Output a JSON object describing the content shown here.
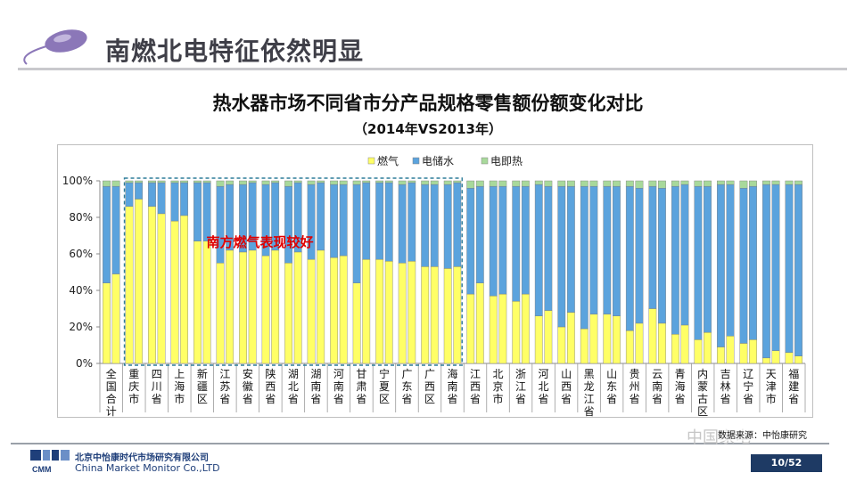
{
  "slide": {
    "title": "南燃北电特征依然明显",
    "page_number": "10/52",
    "watermark": "中国家电"
  },
  "company": {
    "name_cn": "北京中怡康时代市场研究有限公司",
    "name_en": "China Market Monitor Co.,LTD",
    "logo_text": "CMM"
  },
  "source_label": "数据来源：中怡康研究",
  "colors": {
    "gas": "#ffff66",
    "storage": "#5ba3dd",
    "instant": "#a8d99b",
    "accent_red": "#e00000",
    "highlight_box": "#2e7d9a"
  },
  "chart_data": {
    "type": "bar",
    "stacked": true,
    "title": "热水器市场不同省市分产品规格零售额份额变化对比",
    "subtitle": "（2014年VS2013年）",
    "ylim": [
      0,
      100
    ],
    "yticks": [
      "0%",
      "20%",
      "40%",
      "60%",
      "80%",
      "100%"
    ],
    "legend": {
      "position": "top",
      "entries": [
        "燃气",
        "电储水",
        "电即热"
      ]
    },
    "annotation": {
      "text": "南方燃气表现较好",
      "region_start": "重庆市",
      "region_end": "海南省"
    },
    "bar_order": [
      "2013",
      "2014"
    ],
    "categories": [
      "全国合计",
      "重庆市",
      "四川省",
      "上海市",
      "新疆区",
      "江苏省",
      "安徽省",
      "陕西省",
      "湖北省",
      "湖南省",
      "河南省",
      "甘肃省",
      "宁夏区",
      "广东省",
      "广西区",
      "海南省",
      "江西省",
      "北京市",
      "浙江省",
      "河北省",
      "山西省",
      "黑龙江省",
      "山东省",
      "贵州省",
      "云南省",
      "青海省",
      "内蒙古区",
      "吉林省",
      "辽宁省",
      "天津市",
      "福建省"
    ],
    "category_display": [
      "全国合计",
      "重庆市",
      "四川省",
      "上海市",
      "新疆区",
      "江苏省",
      "安徽省",
      "陕西省",
      "湖北省",
      "湖南省",
      "河南省",
      "甘肃省",
      "宁夏区",
      "广东省",
      "广西区",
      "海南省",
      "江西省",
      "北京市",
      "浙江省",
      "河北省",
      "山西省",
      "黑龙江省",
      "山东省",
      "贵州省",
      "云南省",
      "青海省",
      "内蒙古区",
      "吉林省",
      "辽宁省",
      "天津市",
      "福建省"
    ],
    "series": [
      {
        "name": "燃气",
        "values_2013": [
          44,
          86,
          86,
          78,
          67,
          55,
          61,
          59,
          55,
          57,
          58,
          44,
          57,
          55,
          53,
          52,
          38,
          37,
          34,
          26,
          20,
          19,
          27,
          18,
          30,
          16,
          13,
          9,
          11,
          3,
          6
        ],
        "values_2014": [
          49,
          90,
          82,
          81,
          67,
          62,
          62,
          62,
          61,
          62,
          59,
          57,
          56,
          56,
          53,
          53,
          44,
          38,
          38,
          29,
          28,
          27,
          26,
          22,
          22,
          21,
          17,
          15,
          13,
          7,
          4
        ]
      },
      {
        "name": "电储水",
        "values_2013": [
          53,
          13,
          13,
          21,
          32,
          42,
          37,
          39,
          42,
          41,
          40,
          54,
          42,
          43,
          45,
          46,
          58,
          60,
          63,
          72,
          77,
          78,
          70,
          79,
          67,
          81,
          84,
          89,
          85,
          95,
          92
        ],
        "values_2014": [
          48,
          9,
          17,
          18,
          32,
          36,
          37,
          37,
          38,
          37,
          39,
          42,
          43,
          43,
          45,
          46,
          53,
          59,
          59,
          68,
          69,
          70,
          71,
          74,
          74,
          77,
          80,
          83,
          84,
          91,
          94
        ]
      },
      {
        "name": "电即热",
        "values_2013": [
          3,
          1,
          1,
          1,
          1,
          3,
          2,
          2,
          3,
          2,
          2,
          2,
          1,
          2,
          2,
          2,
          4,
          3,
          3,
          2,
          3,
          3,
          3,
          3,
          3,
          3,
          3,
          2,
          4,
          2,
          2
        ],
        "values_2014": [
          3,
          1,
          1,
          1,
          1,
          2,
          1,
          1,
          1,
          1,
          2,
          1,
          1,
          1,
          2,
          1,
          3,
          3,
          3,
          3,
          3,
          3,
          3,
          4,
          4,
          2,
          3,
          2,
          3,
          2,
          2
        ]
      }
    ]
  }
}
